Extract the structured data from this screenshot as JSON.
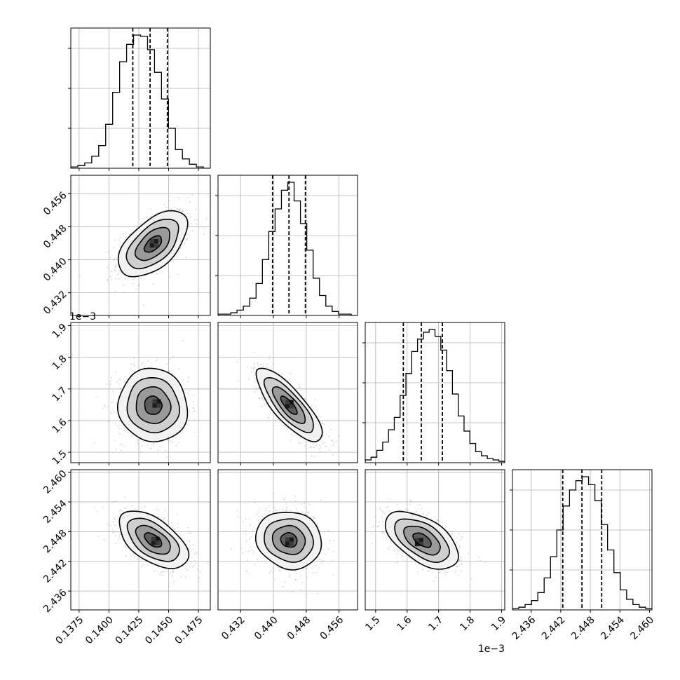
{
  "chart_data": {
    "type": "corner",
    "title": "",
    "parameters": [
      {
        "key": "p0",
        "range": [
          0.1368,
          0.1485
        ],
        "ticks": [
          "0.1375",
          "0.1400",
          "0.1425",
          "0.1450",
          "0.1475"
        ],
        "tick_values": [
          0.1375,
          0.14,
          0.1425,
          0.145,
          0.1475
        ],
        "offset_text": "",
        "quantiles": [
          0.142,
          0.14345,
          0.1449
        ],
        "hist_counts": [
          1,
          2,
          4,
          9,
          17,
          33,
          57,
          80,
          93,
          100,
          99,
          89,
          72,
          52,
          30,
          14,
          7,
          3,
          1,
          0
        ]
      },
      {
        "key": "p1",
        "range": [
          0.4265,
          0.4605
        ],
        "ticks": [
          "0.432",
          "0.440",
          "0.448",
          "0.456"
        ],
        "tick_values": [
          0.432,
          0.44,
          0.448,
          0.456
        ],
        "offset_text": "",
        "quantiles": [
          0.4398,
          0.4438,
          0.4478
        ],
        "hist_counts": [
          1,
          1,
          2,
          4,
          7,
          13,
          24,
          42,
          63,
          80,
          94,
          100,
          86,
          69,
          49,
          28,
          15,
          7,
          3,
          1,
          1,
          0
        ]
      },
      {
        "key": "p2",
        "range": [
          1.467,
          1.91
        ],
        "ticks": [
          "1.5",
          "1.6",
          "1.7",
          "1.8",
          "1.9"
        ],
        "tick_values": [
          1.5,
          1.6,
          1.7,
          1.8,
          1.9
        ],
        "offset_text": "1e−3",
        "quantiles": [
          1.588,
          1.645,
          1.712
        ],
        "hist_counts": [
          2,
          4,
          9,
          15,
          24,
          33,
          49,
          65,
          81,
          90,
          95,
          97,
          92,
          82,
          67,
          50,
          34,
          23,
          14,
          8,
          5,
          3,
          2,
          1
        ]
      },
      {
        "key": "p3",
        "range": [
          2.4322,
          2.4605
        ],
        "ticks": [
          "2.436",
          "2.442",
          "2.448",
          "2.454",
          "2.460"
        ],
        "tick_values": [
          2.436,
          2.442,
          2.448,
          2.454,
          2.46
        ],
        "offset_text": "",
        "quantiles": [
          2.4424,
          2.4463,
          2.4503
        ],
        "hist_counts": [
          1,
          2,
          4,
          7,
          13,
          24,
          40,
          60,
          78,
          90,
          97,
          100,
          94,
          82,
          64,
          45,
          28,
          15,
          8,
          4,
          2,
          1
        ]
      }
    ],
    "pairs": [
      {
        "x": "p0",
        "y": "p1",
        "center": [
          0.1437,
          0.4438
        ],
        "std": [
          0.00145,
          0.004
        ],
        "rho": 0.55,
        "peak_offset": [
          8e-05,
          0.0002
        ]
      },
      {
        "x": "p0",
        "y": "p2",
        "center": [
          0.1437,
          1.648
        ],
        "std": [
          0.00145,
          0.058
        ],
        "rho": -0.05,
        "peak_offset": [
          0.0003,
          0.006
        ]
      },
      {
        "x": "p1",
        "y": "p2",
        "center": [
          0.4438,
          1.648
        ],
        "std": [
          0.004,
          0.058
        ],
        "rho": -0.8,
        "peak_offset": [
          0.0001,
          0.004
        ]
      },
      {
        "x": "p0",
        "y": "p3",
        "center": [
          0.1437,
          2.4463
        ],
        "std": [
          0.00145,
          0.0029
        ],
        "rho": -0.55,
        "peak_offset": [
          0.0002,
          -0.0002
        ]
      },
      {
        "x": "p1",
        "y": "p3",
        "center": [
          0.4438,
          2.4463
        ],
        "std": [
          0.004,
          0.0029
        ],
        "rho": -0.1,
        "peak_offset": [
          0.0001,
          -0.0003
        ]
      },
      {
        "x": "p2",
        "y": "p3",
        "center": [
          1.648,
          2.4463
        ],
        "std": [
          0.058,
          0.0029
        ],
        "rho": -0.55,
        "peak_offset": [
          -0.01,
          -0.0004
        ]
      }
    ],
    "contour_levels_sigma": [
      0.5,
      1.0,
      1.5,
      2.0
    ],
    "grid": true,
    "legend": "none",
    "colors": {
      "contour": "#000000",
      "points": "#808080",
      "hist": "#000000",
      "grid": "#b0b0b0",
      "quantile": "#000000"
    }
  }
}
